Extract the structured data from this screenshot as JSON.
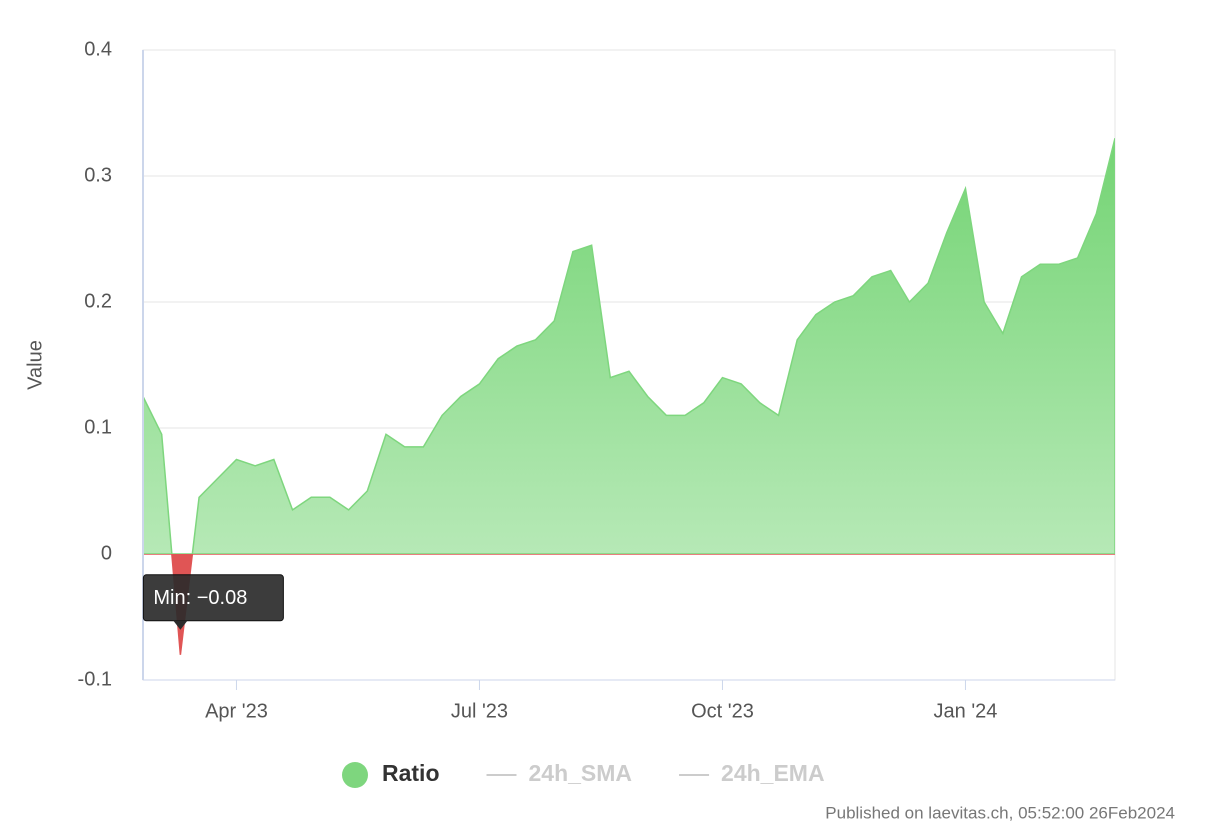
{
  "chart_data": {
    "type": "area",
    "y_label": "Value",
    "categories": [
      null,
      null,
      null,
      null,
      null,
      "Apr '23",
      null,
      null,
      null,
      null,
      null,
      null,
      null,
      null,
      null,
      null,
      null,
      null,
      "Jul '23",
      null,
      null,
      null,
      null,
      null,
      null,
      null,
      null,
      null,
      null,
      null,
      null,
      "Oct '23",
      null,
      null,
      null,
      null,
      null,
      null,
      null,
      null,
      null,
      null,
      null,
      null,
      "Jan '24",
      null,
      null,
      null,
      null,
      null,
      null,
      null,
      null
    ],
    "series": [
      {
        "name": "Ratio",
        "color": "#7ed67e",
        "negative_color": "#e05555",
        "visible": true,
        "values": [
          0.125,
          0.095,
          -0.08,
          0.045,
          0.06,
          0.075,
          0.07,
          0.075,
          0.035,
          0.045,
          0.045,
          0.035,
          0.05,
          0.095,
          0.085,
          0.085,
          0.11,
          0.125,
          0.135,
          0.155,
          0.165,
          0.17,
          0.185,
          0.24,
          0.245,
          0.14,
          0.145,
          0.125,
          0.11,
          0.11,
          0.12,
          0.14,
          0.135,
          0.12,
          0.11,
          0.17,
          0.19,
          0.2,
          0.205,
          0.22,
          0.225,
          0.2,
          0.215,
          0.255,
          0.29,
          0.2,
          0.175,
          0.22,
          0.23,
          0.23,
          0.235,
          0.27,
          0.33
        ]
      },
      {
        "name": "24h_SMA",
        "color": "#cccccc",
        "visible": false
      },
      {
        "name": "24h_EMA",
        "color": "#cccccc",
        "visible": false
      }
    ],
    "annotation": "Min: −0.08",
    "ylim": [
      -0.1,
      0.4
    ],
    "yticks": [
      -0.1,
      0,
      0.1,
      0.2,
      0.3,
      0.4
    ],
    "grid": true,
    "legend": "bottom",
    "footer": "Published on laevitas.ch, 05:52:00 26Feb2024"
  }
}
